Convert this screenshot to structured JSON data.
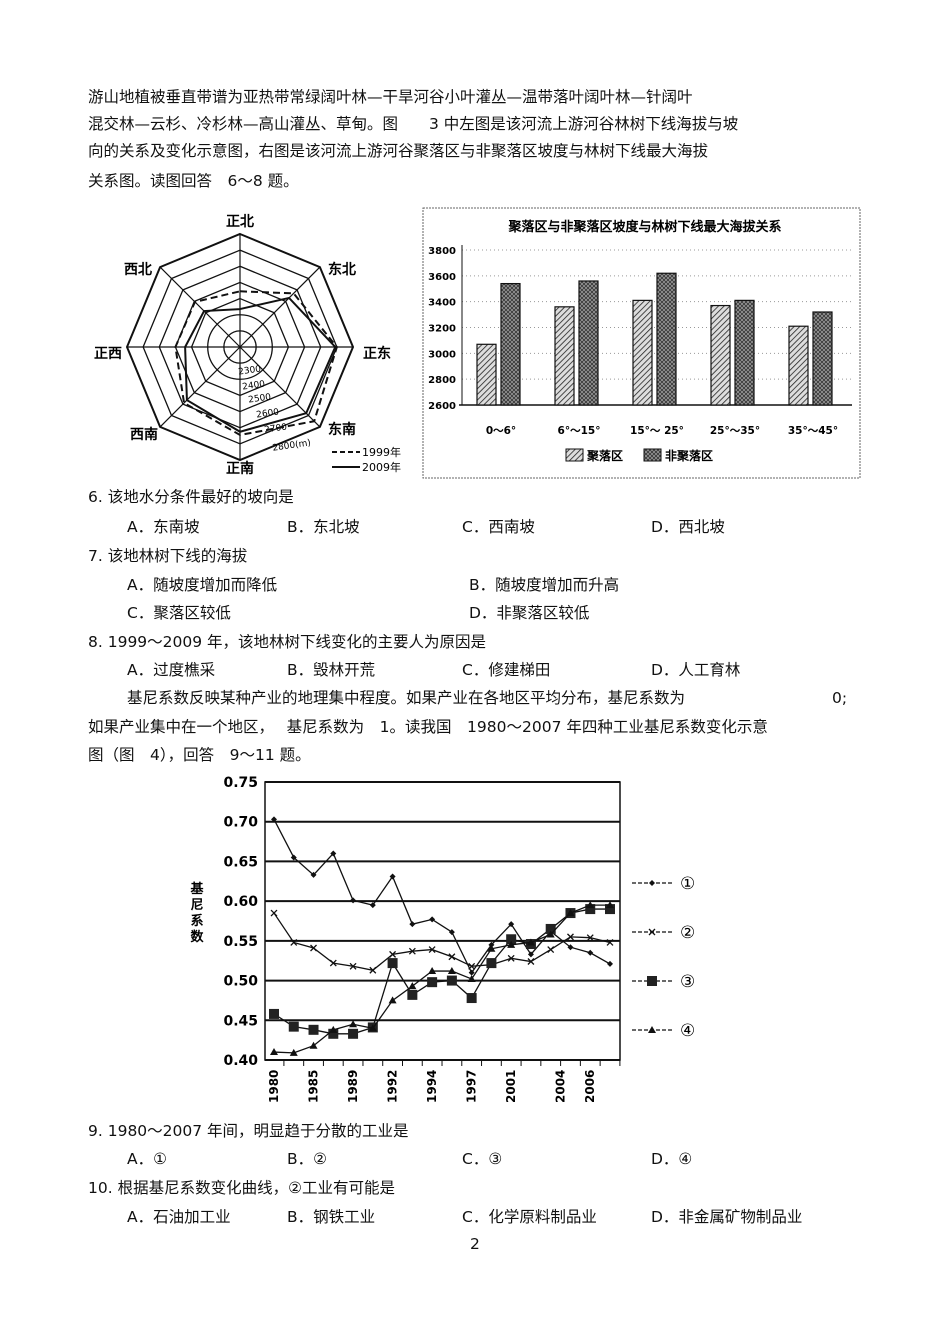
{
  "intro": {
    "lines": [
      "游山地植被垂直带谱为亚热带常绿阔叶林—干旱河谷小叶灌丛—温带落叶阔叶林—针阔叶",
      "混交林—云杉、冷杉林—高山灌丛、草甸。图　　3 中左图是该河流上游河谷林树下线海拔与坡",
      "向的关系及变化示意图，右图是该河流上游河谷聚落区与非聚落区坡度与林树下线最大海拔",
      "关系图。读图回答　6～8 题。"
    ]
  },
  "questions": [
    {
      "stem": "6.  该地水分条件最好的坡向是",
      "options": [
        "A．东南坡",
        "B．东北坡",
        "C．西南坡",
        "D．西北坡"
      ]
    },
    {
      "stem": "7.  该地林树下线的海拔",
      "options": [
        "A．随坡度增加而降低",
        "B．随坡度增加而升高",
        "C．聚落区较低",
        "D．非聚落区较低"
      ]
    },
    {
      "stem": "8.  1999～2009 年，该地林树下线变化的主要人为原因是",
      "options": [
        "A．过度樵采",
        "B．毁林开荒",
        "C．修建梯田",
        "D．人工育林"
      ]
    }
  ],
  "gini_intro": {
    "lines": [
      "基尼系数反映某种产业的地理集中程度。如果产业在各地区平均分布，基尼系数为",
      "0;",
      "如果产业集中在一个地区，　 基尼系数为　1。读我国　1980～2007 年四种工业基尼系数变化示意",
      "图（图　4），回答　9～11 题。"
    ]
  },
  "questions2": [
    {
      "stem": "9.  1980～2007 年间，明显趋于分散的工业是",
      "options": [
        "A．①",
        "B．②",
        "C．③",
        "D．④"
      ]
    },
    {
      "stem": "10.  根据基尼系数变化曲线，②工业有可能是",
      "options": [
        "A．石油加工业",
        "B．钢铁工业",
        "C．化学原料制品业",
        "D．非金属矿物制品业"
      ]
    }
  ],
  "page_number": "2",
  "chart_data": [
    {
      "type": "radar",
      "directions": [
        "正北",
        "东北",
        "正东",
        "东南",
        "正南",
        "西南",
        "正西",
        "西北"
      ],
      "ring_labels": [
        "2300",
        "2400",
        "2500",
        "2600",
        "2700",
        "2800(m)"
      ],
      "range": [
        2200,
        2900
      ],
      "series": [
        {
          "name": "1999年",
          "style": "dashed",
          "values": [
            2545,
            2670,
            2800,
            2850,
            2745,
            2690,
            2600,
            2595
          ]
        },
        {
          "name": "2009年",
          "style": "solid",
          "values": [
            2435,
            2630,
            2790,
            2780,
            2725,
            2665,
            2540,
            2515
          ]
        }
      ],
      "legend_position": "bottom-right"
    },
    {
      "type": "bar",
      "title": "聚落区与非聚落区坡度与林树下线最大海拔关系",
      "categories": [
        "0～6°",
        "6°～15°",
        "15°～ 25°",
        "25°～35°",
        "35°～45°"
      ],
      "yticks": [
        "3800",
        "3600",
        "3400",
        "3200",
        "3000",
        "2800",
        "2600"
      ],
      "ylim": [
        2600,
        3800
      ],
      "series": [
        {
          "name": "聚落区",
          "values": [
            3070,
            3360,
            3410,
            3370,
            3210
          ]
        },
        {
          "name": "非聚落区",
          "values": [
            3540,
            3560,
            3620,
            3410,
            3320
          ]
        }
      ],
      "legend_position": "bottom",
      "grid": true
    },
    {
      "type": "line",
      "ylabel": "基尼系数",
      "ylim": [
        0.4,
        0.75
      ],
      "yticks": [
        "0.75",
        "0.70",
        "0.65",
        "0.60",
        "0.55",
        "0.50",
        "0.45",
        "0.40"
      ],
      "x_count": 18,
      "xtick_labels": [
        {
          "label": "1980",
          "index": 0
        },
        {
          "label": "1985",
          "index": 2
        },
        {
          "label": "1989",
          "index": 4
        },
        {
          "label": "1992",
          "index": 6
        },
        {
          "label": "1994",
          "index": 8
        },
        {
          "label": "1997",
          "index": 10
        },
        {
          "label": "2001",
          "index": 12
        },
        {
          "label": "2004",
          "index": 14.5
        },
        {
          "label": "2006",
          "index": 16
        }
      ],
      "series": [
        {
          "name": "①",
          "marker": "diamond",
          "values": [
            0.703,
            0.655,
            0.633,
            0.66,
            0.601,
            0.595,
            0.631,
            0.571,
            0.577,
            0.561,
            0.51,
            0.545,
            0.571,
            0.533,
            0.562,
            0.542,
            0.535,
            0.521
          ]
        },
        {
          "name": "②",
          "marker": "x",
          "values": [
            0.585,
            0.548,
            0.541,
            0.522,
            0.518,
            0.513,
            0.533,
            0.537,
            0.539,
            0.53,
            0.518,
            0.52,
            0.528,
            0.524,
            0.539,
            0.555,
            0.554,
            0.548
          ]
        },
        {
          "name": "③",
          "marker": "square",
          "values": [
            0.458,
            0.442,
            0.438,
            0.433,
            0.433,
            0.441,
            0.522,
            0.482,
            0.498,
            0.5,
            0.478,
            0.522,
            0.552,
            0.546,
            0.565,
            0.585,
            0.59,
            0.59
          ]
        },
        {
          "name": "④",
          "marker": "triangle",
          "values": [
            0.41,
            0.409,
            0.418,
            0.438,
            0.445,
            0.44,
            0.475,
            0.493,
            0.512,
            0.512,
            0.502,
            0.54,
            0.545,
            0.548,
            0.558,
            0.585,
            0.595,
            0.595
          ]
        }
      ],
      "grid": true,
      "legend_position": "right"
    }
  ]
}
